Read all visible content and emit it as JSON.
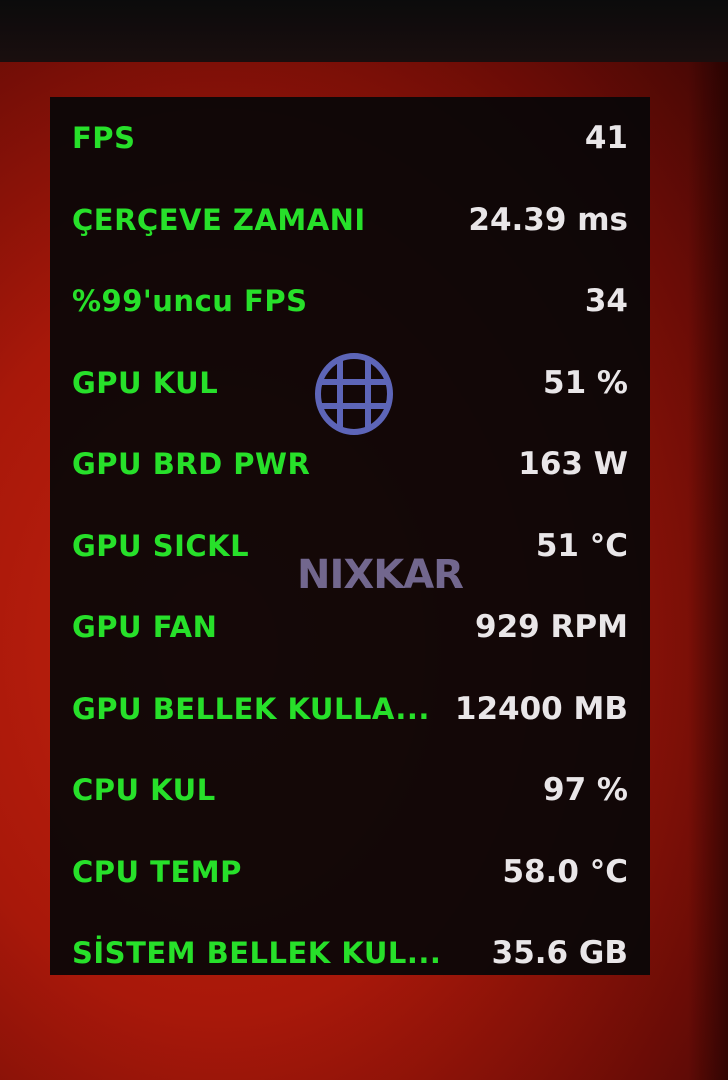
{
  "overlay": {
    "rows": [
      {
        "label": "FPS",
        "value": "41"
      },
      {
        "label": "ÇERÇEVE ZAMANI",
        "value": "24.39 ms"
      },
      {
        "label": "%99'uncu FPS",
        "value": "34"
      },
      {
        "label": "GPU KUL",
        "value": "51 %"
      },
      {
        "label": "GPU BRD PWR",
        "value": "163 W"
      },
      {
        "label": "GPU SICKL",
        "value": "51 °C"
      },
      {
        "label": "GPU FAN",
        "value": "929 RPM"
      },
      {
        "label": "GPU BELLEK KULLA...",
        "value": "12400 MB"
      },
      {
        "label": "CPU KUL",
        "value": "97 %"
      },
      {
        "label": "CPU TEMP",
        "value": "58.0 °C"
      },
      {
        "label": "SİSTEM BELLEK KUL...",
        "value": "35.6 GB"
      }
    ],
    "label_color": "#27e02a",
    "value_color": "#e9e6e8"
  },
  "watermark": {
    "text": "NIXKAR",
    "icon": "globe-icon"
  }
}
